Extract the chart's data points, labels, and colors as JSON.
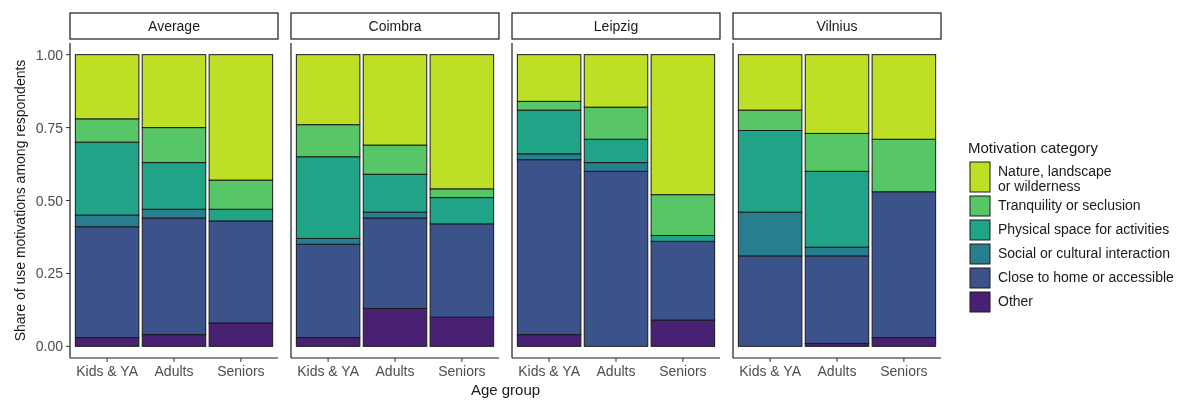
{
  "chart_data": [
    {
      "type": "bar",
      "title": "Average",
      "ylabel": "Share of use motivations among respondents",
      "categories": [
        "Kids & YA",
        "Adults",
        "Seniors"
      ],
      "stacked": true,
      "ylim": [
        -0.04,
        1.04
      ],
      "yticks": [
        {
          "value": 0,
          "label": "0.00"
        },
        {
          "value": 0.25,
          "label": "0.25"
        },
        {
          "value": 0.5,
          "label": "0.50"
        },
        {
          "value": 0.75,
          "label": "0.75"
        },
        {
          "value": 1,
          "label": "1.00"
        }
      ],
      "grid": false,
      "legend": false,
      "series": [
        {
          "color": "#482173",
          "values": [
            0.03,
            0.04,
            0.08
          ]
        },
        {
          "color": "#3b528b",
          "values": [
            0.38,
            0.4,
            0.35
          ]
        },
        {
          "color": "#287d8e",
          "values": [
            0.04,
            0.03,
            0
          ]
        },
        {
          "color": "#20a386",
          "values": [
            0.25,
            0.16,
            0.04
          ]
        },
        {
          "color": "#56c667",
          "values": [
            0.08,
            0.12,
            0.1
          ]
        },
        {
          "color": "#bddf26",
          "values": [
            0.22,
            0.25,
            0.43
          ]
        }
      ]
    },
    {
      "type": "bar",
      "title": "Coimbra",
      "xlabel": "Age group",
      "categories": [
        "Kids & YA",
        "Adults",
        "Seniors"
      ],
      "stacked": true,
      "ylim": [
        -0.04,
        1.04
      ],
      "tick_labels": "x",
      "grid": false,
      "legend": false,
      "series": [
        {
          "color": "#482173",
          "values": [
            0.03,
            0.13,
            0.1
          ]
        },
        {
          "color": "#3b528b",
          "values": [
            0.32,
            0.31,
            0.32
          ]
        },
        {
          "color": "#287d8e",
          "values": [
            0.02,
            0.02,
            0
          ]
        },
        {
          "color": "#20a386",
          "values": [
            0.28,
            0.13,
            0.09
          ]
        },
        {
          "color": "#56c667",
          "values": [
            0.11,
            0.1,
            0.03
          ]
        },
        {
          "color": "#bddf26",
          "values": [
            0.24,
            0.31,
            0.46
          ]
        }
      ]
    },
    {
      "type": "bar",
      "title": "Leipzig",
      "categories": [
        "Kids & YA",
        "Adults",
        "Seniors"
      ],
      "stacked": true,
      "ylim": [
        -0.04,
        1.04
      ],
      "tick_labels": "x",
      "grid": false,
      "legend": false,
      "series": [
        {
          "color": "#482173",
          "values": [
            0.04,
            0,
            0.09
          ]
        },
        {
          "color": "#3b528b",
          "values": [
            0.6,
            0.6,
            0.27
          ]
        },
        {
          "color": "#287d8e",
          "values": [
            0.02,
            0.03,
            0
          ]
        },
        {
          "color": "#20a386",
          "values": [
            0.15,
            0.08,
            0.02
          ]
        },
        {
          "color": "#56c667",
          "values": [
            0.03,
            0.11,
            0.14
          ]
        },
        {
          "color": "#bddf26",
          "values": [
            0.16,
            0.18,
            0.48
          ]
        }
      ]
    },
    {
      "type": "bar",
      "title": "Vilnius",
      "categories": [
        "Kids & YA",
        "Adults",
        "Seniors"
      ],
      "stacked": true,
      "ylim": [
        -0.04,
        1.04
      ],
      "tick_labels": "x",
      "grid": false,
      "legend": "right",
      "legend_title": "Motivation category",
      "series": [
        {
          "name": "Other",
          "color": "#482173",
          "values": [
            0,
            0.01,
            0.03
          ]
        },
        {
          "name": "Close to home or accessible",
          "color": "#3b528b",
          "values": [
            0.31,
            0.3,
            0.5
          ]
        },
        {
          "name": "Social or cultural interaction",
          "color": "#287d8e",
          "values": [
            0.15,
            0.03,
            0
          ]
        },
        {
          "name": "Physical space for activities",
          "color": "#20a386",
          "values": [
            0.28,
            0.26,
            0
          ]
        },
        {
          "name": "Tranquility or seclusion",
          "color": "#56c667",
          "values": [
            0.07,
            0.13,
            0.18
          ]
        },
        {
          "name": "Nature, landscape or wilderness",
          "color": "#bddf26",
          "values": [
            0.19,
            0.27,
            0.29
          ]
        }
      ]
    }
  ]
}
